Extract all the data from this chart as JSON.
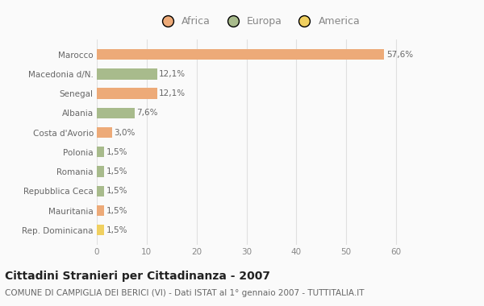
{
  "categories": [
    "Marocco",
    "Macedonia d/N.",
    "Senegal",
    "Albania",
    "Costa d'Avorio",
    "Polonia",
    "Romania",
    "Repubblica Ceca",
    "Mauritania",
    "Rep. Dominicana"
  ],
  "values": [
    57.6,
    12.1,
    12.1,
    7.6,
    3.0,
    1.5,
    1.5,
    1.5,
    1.5,
    1.5
  ],
  "labels": [
    "57,6%",
    "12,1%",
    "12,1%",
    "7,6%",
    "3,0%",
    "1,5%",
    "1,5%",
    "1,5%",
    "1,5%",
    "1,5%"
  ],
  "colors": [
    "#EDAA78",
    "#A8BB8C",
    "#EDAA78",
    "#A8BB8C",
    "#EDAA78",
    "#A8BB8C",
    "#A8BB8C",
    "#A8BB8C",
    "#EDAA78",
    "#F0D060"
  ],
  "continent": [
    "Africa",
    "Europa",
    "Africa",
    "Europa",
    "Africa",
    "Europa",
    "Europa",
    "Europa",
    "Africa",
    "America"
  ],
  "legend_labels": [
    "Africa",
    "Europa",
    "America"
  ],
  "legend_colors": [
    "#EDAA78",
    "#A8BB8C",
    "#F0D060"
  ],
  "title": "Cittadini Stranieri per Cittadinanza - 2007",
  "subtitle": "COMUNE DI CAMPIGLIA DEI BERICI (VI) - Dati ISTAT al 1° gennaio 2007 - TUTTITALIA.IT",
  "xlim": [
    0,
    65
  ],
  "xticks": [
    0,
    10,
    20,
    30,
    40,
    50,
    60
  ],
  "background_color": "#fafafa",
  "title_fontsize": 10,
  "subtitle_fontsize": 7.5,
  "label_fontsize": 7.5,
  "tick_fontsize": 7.5,
  "legend_fontsize": 9
}
